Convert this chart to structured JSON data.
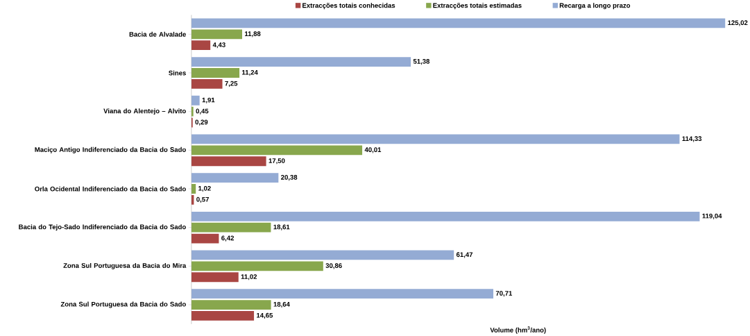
{
  "chart_data": {
    "type": "bar",
    "orientation": "horizontal",
    "xlabel": "Volume (hm$^{3}$/ano)",
    "legend": "top",
    "tick_labels": "y",
    "categories": [
      "Bacia de Alvalade",
      "Sines",
      "Viana do Alentejo – Alvito",
      "Maciço Antigo Indiferenciado da Bacia do Sado",
      "Orla Ocidental Indiferenciado da Bacia do Sado",
      "Bacia do Tejo-Sado Indiferenciado da Bacia do Sado",
      "Zona Sul Portuguesa da Bacia do Mira",
      "Zona Sul Portuguesa da Bacia do Sado"
    ],
    "series": [
      {
        "name": "Extracções totais conhecidas",
        "color": "#a94643",
        "values": [
          4.43,
          7.25,
          0.29,
          17.5,
          0.57,
          6.42,
          11.02,
          14.65
        ],
        "value_labels": [
          "4,43",
          "7,25",
          "0,29",
          "17,50",
          "0,57",
          "6,42",
          "11,02",
          "14,65"
        ]
      },
      {
        "name": "Extracções totais estimadas",
        "color": "#88a74d",
        "values": [
          11.88,
          11.24,
          0.45,
          40.01,
          1.02,
          18.61,
          30.86,
          18.64
        ],
        "value_labels": [
          "11,88",
          "11,24",
          "0,45",
          "40,01",
          "1,02",
          "18,61",
          "30,86",
          "18,64"
        ]
      },
      {
        "name": "Recarga a longo prazo",
        "color": "#94abd4",
        "values": [
          125.02,
          51.38,
          1.91,
          114.33,
          20.38,
          119.04,
          61.47,
          70.71
        ],
        "value_labels": [
          "125,02",
          "51,38",
          "1,91",
          "114,33",
          "20,38",
          "119,04",
          "61,47",
          "70,71"
        ]
      }
    ]
  }
}
